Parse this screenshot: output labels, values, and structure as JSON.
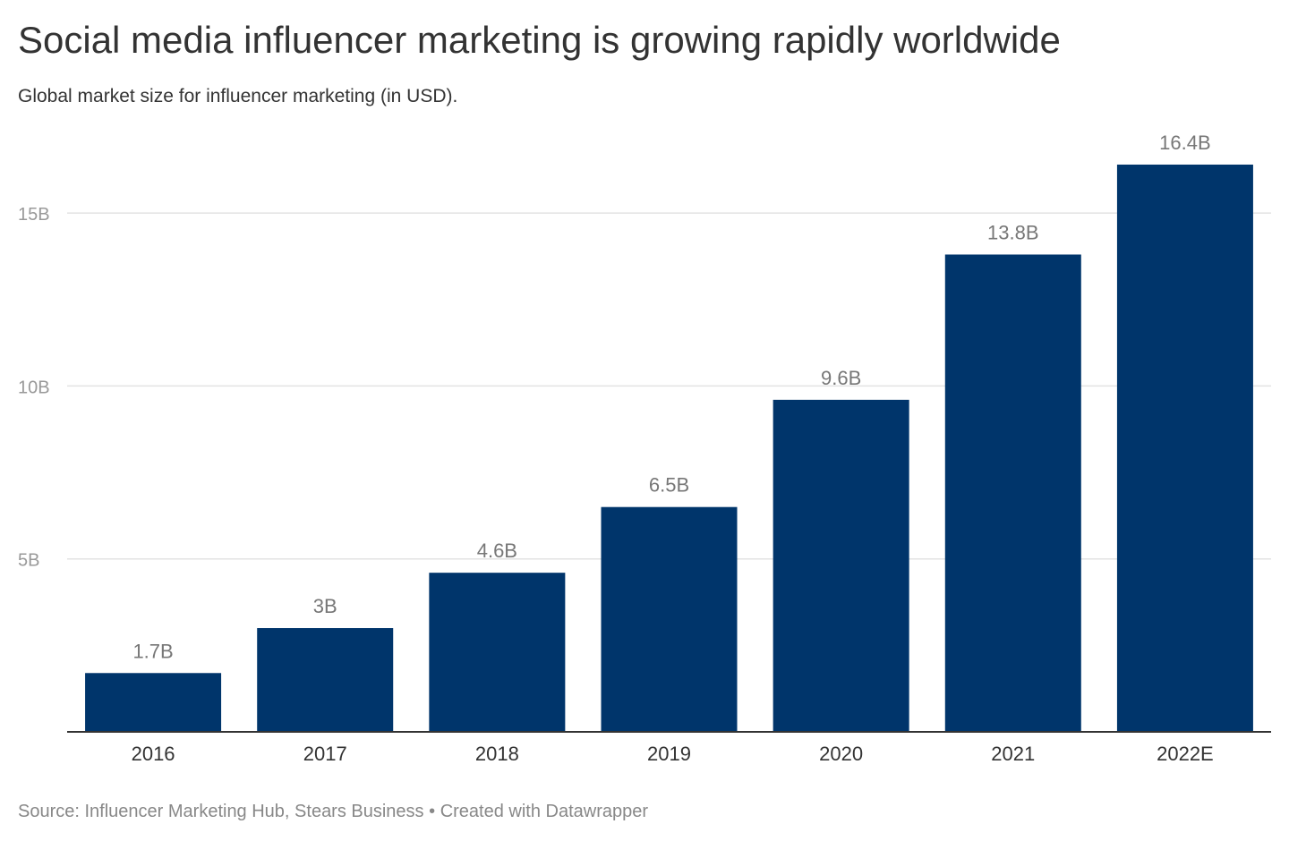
{
  "title": "Social media influencer marketing is growing rapidly worldwide",
  "subtitle": "Global market size for influencer marketing (in USD).",
  "footer": {
    "source": "Source: Influencer Marketing Hub, Stears Business",
    "separator": " • ",
    "credit": "Created with Datawrapper"
  },
  "chart_data": {
    "type": "bar",
    "categories": [
      "2016",
      "2017",
      "2018",
      "2019",
      "2020",
      "2021",
      "2022E"
    ],
    "values": [
      1.7,
      3,
      4.6,
      6.5,
      9.6,
      13.8,
      16.4
    ],
    "value_labels": [
      "1.7B",
      "3B",
      "4.6B",
      "6.5B",
      "9.6B",
      "13.8B",
      "16.4B"
    ],
    "yticks": [
      5,
      10,
      15
    ],
    "ytick_labels": [
      "5B",
      "10B",
      "15B"
    ],
    "ylim": [
      0,
      16.4
    ],
    "grid": true,
    "colors": {
      "bar": "#00356b",
      "grid": "#e3e3e3",
      "axis": "#333333",
      "tick_label": "#999999",
      "value_label": "#777777",
      "category_label": "#333333"
    }
  }
}
